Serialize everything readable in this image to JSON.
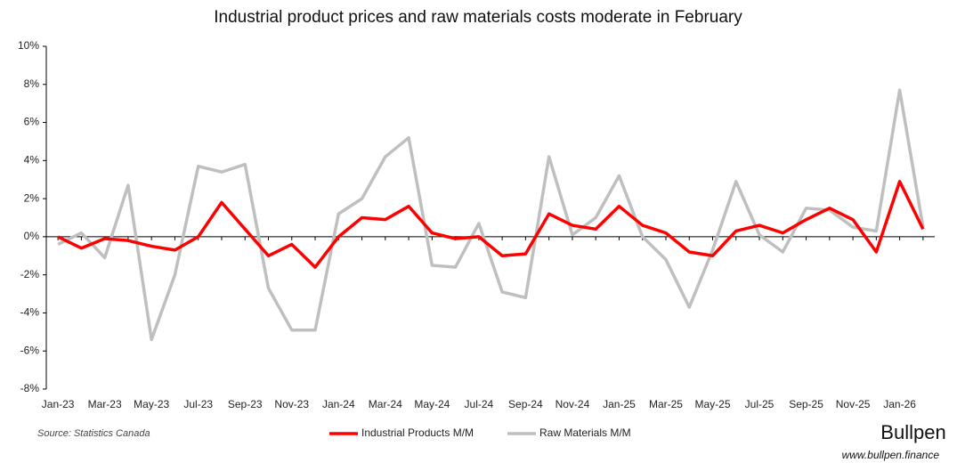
{
  "chart_data": {
    "type": "line",
    "title": "Industrial product prices and raw materials costs moderate in February",
    "source": "Source: Statistics Canada",
    "brand": "Bullpen",
    "website": "www.bullpen.finance",
    "categories": [
      "Jan-23",
      null,
      "Mar-23",
      null,
      "May-23",
      null,
      "Jul-23",
      null,
      "Sep-23",
      null,
      "Nov-23",
      null,
      "Jan-24",
      null,
      "Mar-24",
      null,
      "May-24",
      null,
      "Jul-24",
      null,
      "Sep-24",
      null,
      "Nov-24",
      null,
      "Jan-25",
      null,
      "Mar-25",
      null,
      "May-25",
      null,
      "Jul-25",
      null,
      "Sep-25",
      null,
      "Nov-25",
      null,
      "Jan-26",
      null
    ],
    "series": [
      {
        "name": "Industrial Products M/M",
        "color": "#ff0000",
        "values": [
          0.0,
          -0.6,
          -0.1,
          -0.2,
          -0.5,
          -0.7,
          0.0,
          1.8,
          0.4,
          -1.0,
          -0.4,
          -1.6,
          0.0,
          1.0,
          0.9,
          1.6,
          0.2,
          -0.1,
          0.0,
          -1.0,
          -0.9,
          1.2,
          0.6,
          0.4,
          1.6,
          0.6,
          0.2,
          -0.8,
          -1.0,
          0.3,
          0.6,
          0.2,
          0.9,
          1.5,
          0.9,
          -0.8,
          2.9,
          0.4
        ]
      },
      {
        "name": "Raw Materials M/M",
        "color": "#bfbfbf",
        "values": [
          -0.4,
          0.2,
          -1.1,
          2.7,
          -5.4,
          -2.0,
          3.7,
          3.4,
          3.8,
          -2.7,
          -4.9,
          -4.9,
          1.2,
          2.0,
          4.2,
          5.2,
          -1.5,
          -1.6,
          0.7,
          -2.9,
          -3.2,
          4.2,
          0.1,
          1.0,
          3.2,
          0.0,
          -1.2,
          -3.7,
          -0.7,
          2.9,
          0.1,
          -0.8,
          1.5,
          1.4,
          0.5,
          0.3,
          7.7,
          0.5
        ]
      }
    ],
    "ylim": [
      -8,
      10
    ],
    "yticks": [
      {
        "value": -8,
        "label": "-8%"
      },
      {
        "value": -6,
        "label": "-6%"
      },
      {
        "value": -4,
        "label": "-4%"
      },
      {
        "value": -2,
        "label": "-2%"
      },
      {
        "value": 0,
        "label": "0%"
      },
      {
        "value": 2,
        "label": "2%"
      },
      {
        "value": 4,
        "label": "4%"
      },
      {
        "value": 6,
        "label": "6%"
      },
      {
        "value": 8,
        "label": "8%"
      },
      {
        "value": 10,
        "label": "10%"
      }
    ],
    "grid": false,
    "legend": "bottom"
  }
}
